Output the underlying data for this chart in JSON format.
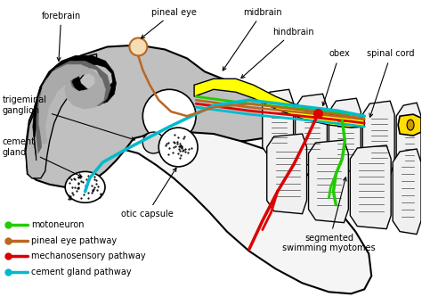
{
  "background_color": "#ffffff",
  "legend_items": [
    {
      "label": "motoneuron",
      "color": "#22cc00",
      "lw": 2.0
    },
    {
      "label": "pineal eye pathway",
      "color": "#bb6622",
      "lw": 2.0
    },
    {
      "label": "mechanosensory pathway",
      "color": "#dd0000",
      "lw": 2.0
    },
    {
      "label": "cement gland pathway",
      "color": "#00bbcc",
      "lw": 2.0
    }
  ],
  "figsize": [
    4.74,
    3.33
  ],
  "dpi": 100,
  "fontsize": 7.0
}
